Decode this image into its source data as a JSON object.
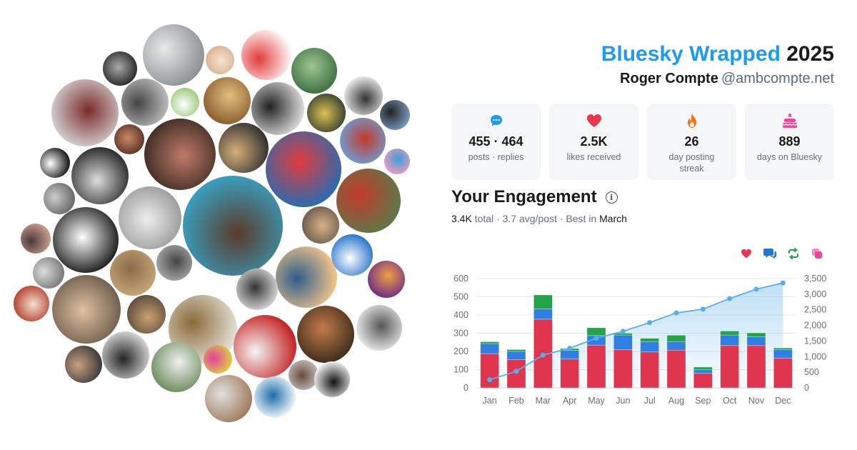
{
  "header": {
    "brand": "Bluesky Wrapped",
    "year": "2025",
    "user_name": "Roger Compte",
    "user_handle": "@ambcompte.net"
  },
  "stats": [
    {
      "icon": "chat-bubble-icon",
      "color": "#1d9bf0",
      "value": "455 · 464",
      "label": "posts · replies"
    },
    {
      "icon": "heart-icon",
      "color": "#e8374f",
      "value": "2.5K",
      "label": "likes received"
    },
    {
      "icon": "flame-icon",
      "color": "#f97316",
      "value": "26",
      "label": "day posting streak"
    },
    {
      "icon": "cake-icon",
      "color": "#ec4899",
      "value": "889",
      "label": "days on Bluesky"
    }
  ],
  "engagement": {
    "title": "Your Engagement",
    "total": "3.4K",
    "total_word": "total",
    "avg": "3.7 avg/post",
    "best_prefix": "Best in",
    "best_month": "March",
    "legend": [
      {
        "icon": "heart-icon",
        "color": "#e8374f"
      },
      {
        "icon": "reply-icon",
        "color": "#1d75d8"
      },
      {
        "icon": "repost-icon",
        "color": "#22a447"
      },
      {
        "icon": "quote-icon",
        "color": "#ec4899"
      }
    ]
  },
  "chart_data": {
    "type": "bar",
    "categories": [
      "Jan",
      "Feb",
      "Mar",
      "Apr",
      "May",
      "Jun",
      "Jul",
      "Aug",
      "Sep",
      "Oct",
      "Nov",
      "Dec"
    ],
    "series": [
      {
        "color": "#e0354f",
        "values": [
          188,
          155,
          377,
          158,
          235,
          210,
          197,
          207,
          80,
          232,
          232,
          163
        ]
      },
      {
        "color": "#2f7fe0",
        "values": [
          55,
          45,
          57,
          48,
          52,
          80,
          57,
          47,
          20,
          58,
          48,
          46
        ]
      },
      {
        "color": "#22a447",
        "values": [
          10,
          10,
          76,
          10,
          43,
          10,
          18,
          35,
          14,
          22,
          22,
          10
        ]
      }
    ],
    "cumulative": {
      "color": "#5aaee8",
      "values": [
        260,
        530,
        1050,
        1270,
        1590,
        1810,
        2090,
        2400,
        2520,
        2860,
        3160,
        3360
      ]
    },
    "y_left": {
      "min": 0,
      "max": 600,
      "ticks": [
        "0",
        "100",
        "200",
        "300",
        "400",
        "500",
        "600"
      ]
    },
    "y_right": {
      "min": 0,
      "max": 3500,
      "ticks": [
        "0",
        "500",
        "1,000",
        "1,500",
        "2,000",
        "2,500",
        "3,000",
        "3,500"
      ]
    },
    "grid": true
  }
}
